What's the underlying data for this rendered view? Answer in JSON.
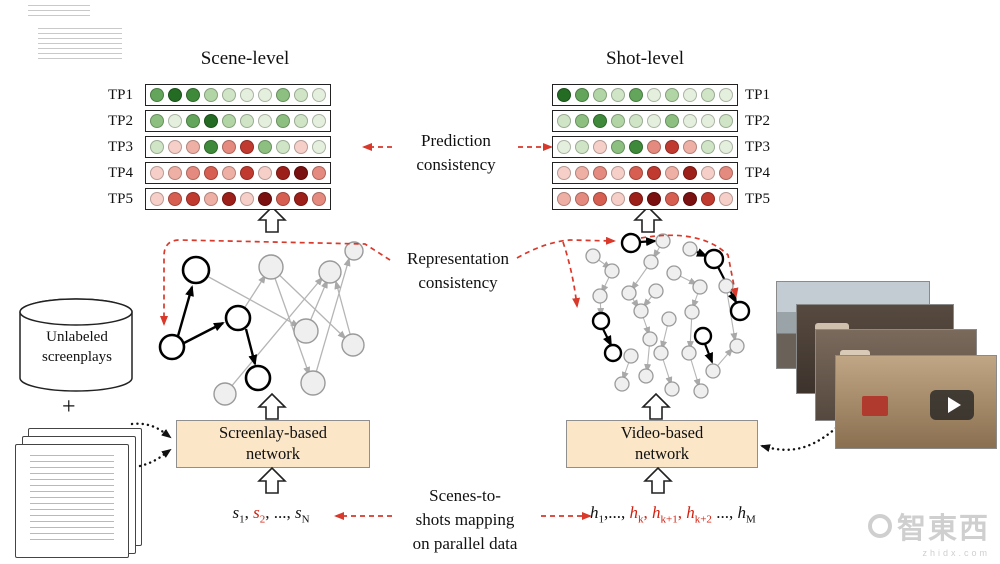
{
  "titles": {
    "scene": "Scene-level",
    "shot": "Shot-level"
  },
  "consistency": {
    "prediction_line1": "Prediction",
    "prediction_line2": "consistency",
    "representation_line1": "Representation",
    "representation_line2": "consistency"
  },
  "heatmaps": {
    "scene": {
      "rows": [
        {
          "label": "TP1",
          "colors": [
            "#63a55a",
            "#246b24",
            "#3f8a3a",
            "#b2d5a6",
            "#cfe5c6",
            "#e4f0dd",
            "#e4f0dd",
            "#8cbf80",
            "#cfe5c6",
            "#e4f0dd"
          ]
        },
        {
          "label": "TP2",
          "colors": [
            "#8cbf80",
            "#e4f0dd",
            "#63a55a",
            "#246b24",
            "#b2d5a6",
            "#cfe5c6",
            "#e4f0dd",
            "#8cbf80",
            "#cfe5c6",
            "#e4f0dd"
          ]
        },
        {
          "label": "TP3",
          "colors": [
            "#cfe5c6",
            "#f5cfc8",
            "#eeafa5",
            "#3f8a3a",
            "#e48a7e",
            "#c03a30",
            "#8cbf80",
            "#cfe5c6",
            "#f5cfc8",
            "#e4f0dd"
          ]
        },
        {
          "label": "TP4",
          "colors": [
            "#f5cfc8",
            "#eeafa5",
            "#e48a7e",
            "#d65f52",
            "#eeafa5",
            "#c03a30",
            "#f5cfc8",
            "#9c1f1a",
            "#7a1010",
            "#e48a7e"
          ]
        },
        {
          "label": "TP5",
          "colors": [
            "#f5cfc8",
            "#d65f52",
            "#c03a30",
            "#eeafa5",
            "#9c1f1a",
            "#f5cfc8",
            "#7a1010",
            "#d65f52",
            "#9c1f1a",
            "#e48a7e"
          ]
        }
      ]
    },
    "shot": {
      "rows": [
        {
          "label": "TP1",
          "colors": [
            "#246b24",
            "#63a55a",
            "#b2d5a6",
            "#cfe5c6",
            "#63a55a",
            "#e4f0dd",
            "#b2d5a6",
            "#e4f0dd",
            "#cfe5c6",
            "#e4f0dd"
          ]
        },
        {
          "label": "TP2",
          "colors": [
            "#cfe5c6",
            "#8cbf80",
            "#3f8a3a",
            "#b2d5a6",
            "#cfe5c6",
            "#e4f0dd",
            "#8cbf80",
            "#e4f0dd",
            "#e4f0dd",
            "#cfe5c6"
          ]
        },
        {
          "label": "TP3",
          "colors": [
            "#e4f0dd",
            "#cfe5c6",
            "#f5cfc8",
            "#8cbf80",
            "#3f8a3a",
            "#e48a7e",
            "#c03a30",
            "#eeafa5",
            "#cfe5c6",
            "#e4f0dd"
          ]
        },
        {
          "label": "TP4",
          "colors": [
            "#f5cfc8",
            "#eeafa5",
            "#e48a7e",
            "#f5cfc8",
            "#d65f52",
            "#c03a30",
            "#eeafa5",
            "#9c1f1a",
            "#f5cfc8",
            "#e48a7e"
          ]
        },
        {
          "label": "TP5",
          "colors": [
            "#eeafa5",
            "#e48a7e",
            "#d65f52",
            "#f5cfc8",
            "#9c1f1a",
            "#7a1010",
            "#d65f52",
            "#7a1010",
            "#c03a30",
            "#f5cfc8"
          ]
        }
      ]
    }
  },
  "boxes": {
    "screenplay": {
      "line1": "Screenlay-based",
      "line2": "network"
    },
    "video": {
      "line1": "Video-based",
      "line2": "network"
    }
  },
  "database": {
    "line1": "Unlabeled",
    "line2": "screenplays",
    "plus": "+"
  },
  "sequences": {
    "scene": {
      "segments": [
        {
          "text": "s",
          "sub": "1"
        },
        {
          "text": ", "
        },
        {
          "text": "s",
          "sub": "2",
          "red": true
        },
        {
          "text": ", ..., "
        },
        {
          "text": "s",
          "sub": "N"
        }
      ]
    },
    "shot": {
      "segments": [
        {
          "text": "h",
          "sub": "1"
        },
        {
          "text": ",..., "
        },
        {
          "text": "h",
          "sub": "k",
          "red": true
        },
        {
          "text": ", ",
          "red": true
        },
        {
          "text": "h",
          "sub": "k+1",
          "red": true
        },
        {
          "text": ", ",
          "red": true
        },
        {
          "text": "h",
          "sub": "k+2",
          "red": true
        },
        {
          "text": "  ..., "
        },
        {
          "text": "h",
          "sub": "M"
        }
      ]
    }
  },
  "mapping": {
    "line1": "Scenes-to-",
    "line2": "shots mapping",
    "line3": "on parallel data"
  },
  "watermark": {
    "text": "智東西",
    "sub": "zhidx.com"
  },
  "colors": {
    "accent_red": "#d8392b",
    "box_fill": "#fbe6c8"
  }
}
